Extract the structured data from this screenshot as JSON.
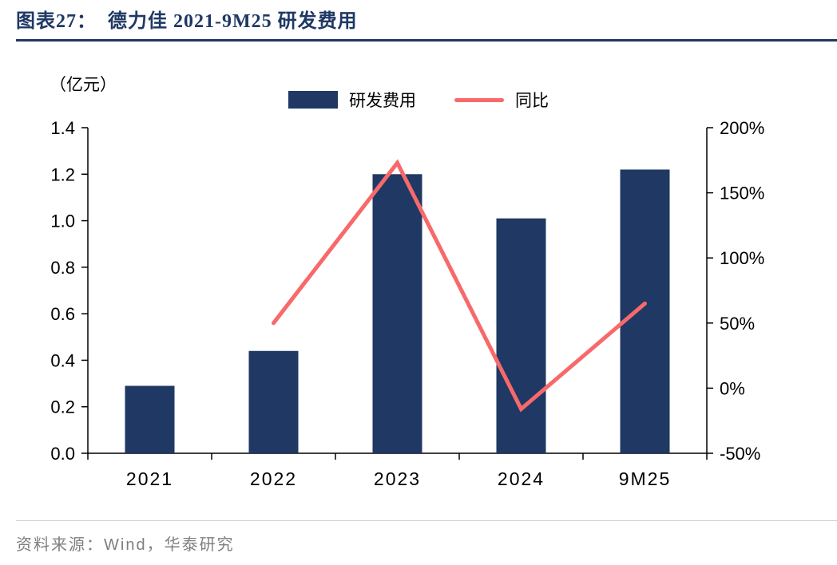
{
  "header": {
    "title": "图表27：  德力佳 2021-9M25 研发费用"
  },
  "chart_data": {
    "type": "combo",
    "title": "德力佳 2021-9M25 研发费用",
    "categories": [
      "2021",
      "2022",
      "2023",
      "2024",
      "9M25"
    ],
    "series": [
      {
        "name": "研发费用",
        "type": "bar",
        "axis": "left",
        "values": [
          0.29,
          0.44,
          1.2,
          1.01,
          1.22
        ],
        "color": "#1f3864"
      },
      {
        "name": "同比",
        "type": "line",
        "axis": "right",
        "values": [
          null,
          50,
          173,
          -16,
          65
        ],
        "color": "#f7696a"
      }
    ],
    "left_axis": {
      "label": "（亿元）",
      "min": 0,
      "max": 1.4,
      "step": 0.2
    },
    "right_axis": {
      "min": -50,
      "max": 200,
      "step": 50,
      "suffix": "%"
    },
    "grid": false,
    "legend_position": "top-center"
  },
  "footer": {
    "source": "资料来源：Wind，华泰研究"
  },
  "colors": {
    "bar": "#1f3864",
    "line": "#f7696a",
    "title": "#1f3864",
    "axis": "#000000",
    "source_text": "#7f7f7f",
    "rule": "#1f3864"
  }
}
